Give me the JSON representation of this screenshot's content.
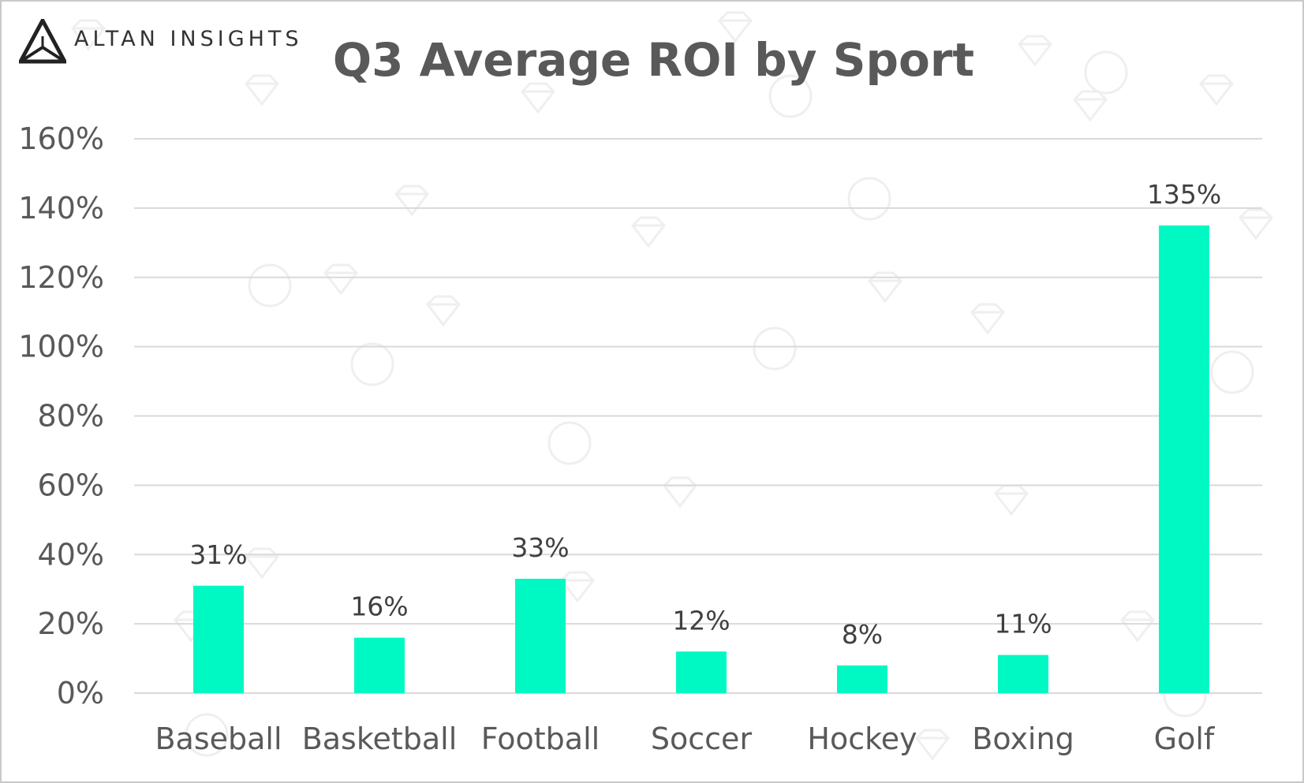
{
  "brand": {
    "name": "ALTAN INSIGHTS"
  },
  "chart_data": {
    "type": "bar",
    "title": "Q3 Average ROI by Sport",
    "xlabel": "",
    "ylabel": "",
    "categories": [
      "Baseball",
      "Basketball",
      "Football",
      "Soccer",
      "Hockey",
      "Boxing",
      "Golf"
    ],
    "values": [
      31,
      16,
      33,
      12,
      8,
      11,
      135
    ],
    "data_labels": [
      "31%",
      "16%",
      "33%",
      "12%",
      "8%",
      "11%",
      "135%"
    ],
    "ylim": [
      0,
      160
    ],
    "yticks": [
      0,
      20,
      40,
      60,
      80,
      100,
      120,
      140,
      160
    ],
    "ytick_labels": [
      "0%",
      "20%",
      "40%",
      "60%",
      "80%",
      "100%",
      "120%",
      "140%",
      "160%"
    ],
    "grid": true,
    "legend": "none",
    "bar_color": "#00F9C3",
    "grid_color": "#d9d9d9"
  }
}
